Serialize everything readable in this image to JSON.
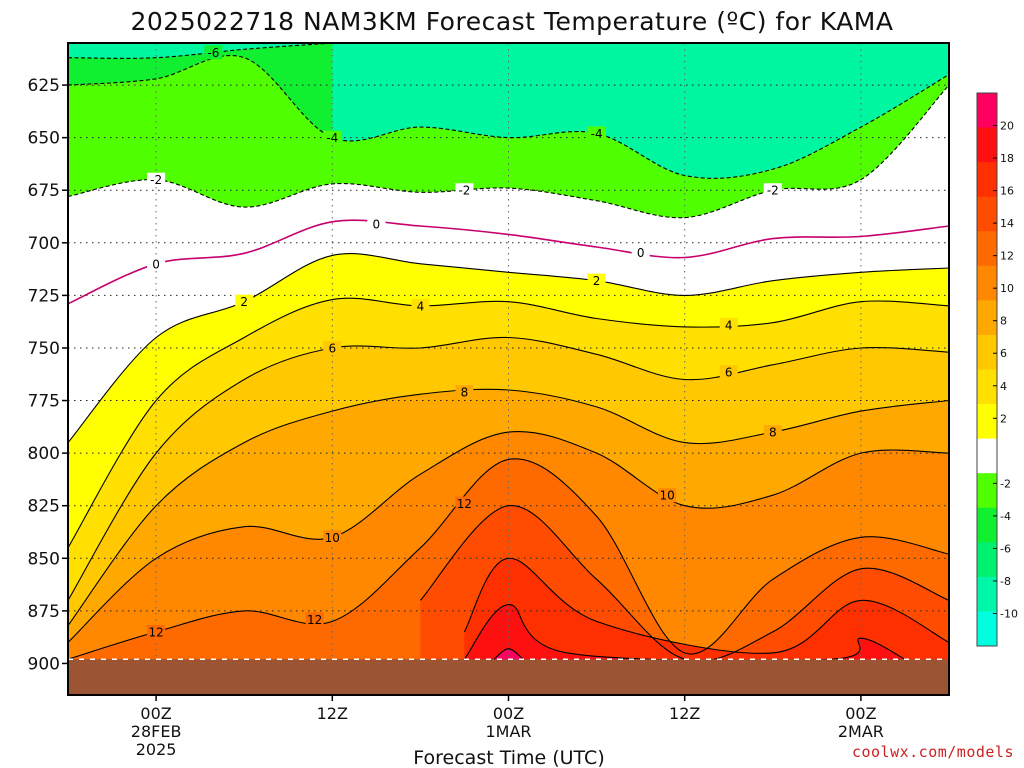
{
  "chart_data": {
    "type": "heatmap",
    "title": "2025022718 NAM3KM Forecast Temperature (ºC) for KAMA",
    "xlabel": "Forecast Time (UTC)",
    "ylabel": "",
    "credit": "coolwx.com/models",
    "y_axis": {
      "quantity": "pressure (hPa)",
      "inverted": true,
      "range": [
        915,
        605
      ],
      "ticks": [
        625,
        650,
        675,
        700,
        725,
        750,
        775,
        800,
        825,
        850,
        875,
        900
      ],
      "tick_labels": [
        "625",
        "650",
        "675",
        "700",
        "725",
        "750",
        "775",
        "800",
        "825",
        "850",
        "875",
        "900"
      ]
    },
    "x_axis": {
      "quantity": "forecast time (UTC)",
      "range": [
        "2025-02-27T18Z",
        "2025-03-02T06Z"
      ],
      "ticks": [
        "2025-02-28T00Z",
        "2025-02-28T12Z",
        "2025-03-01T00Z",
        "2025-03-01T12Z",
        "2025-03-02T00Z"
      ],
      "tick_labels": [
        {
          "line1": "00Z",
          "line2": "28FEB",
          "line3": "2025"
        },
        {
          "line1": "12Z",
          "line2": "",
          "line3": ""
        },
        {
          "line1": "00Z",
          "line2": "1MAR",
          "line3": ""
        },
        {
          "line1": "12Z",
          "line2": "",
          "line3": ""
        },
        {
          "line1": "00Z",
          "line2": "2MAR",
          "line3": ""
        }
      ]
    },
    "grid": true,
    "surface_fill_color": "#9b5434",
    "colorbar": {
      "placement": "right",
      "levels": [
        {
          "min": -12,
          "max": -10,
          "color": "#00ffe0"
        },
        {
          "min": -10,
          "max": -8,
          "color": "#00f6a8"
        },
        {
          "min": -8,
          "max": -6,
          "color": "#00f070"
        },
        {
          "min": -6,
          "max": -4,
          "color": "#10f030"
        },
        {
          "min": -4,
          "max": -2,
          "color": "#50ff00"
        },
        {
          "min": -2,
          "max": 2,
          "color": "#ffffff"
        },
        {
          "min": 2,
          "max": 4,
          "color": "#ffff00"
        },
        {
          "min": 4,
          "max": 6,
          "color": "#ffe000"
        },
        {
          "min": 6,
          "max": 8,
          "color": "#ffc800"
        },
        {
          "min": 8,
          "max": 10,
          "color": "#ffa800"
        },
        {
          "min": 10,
          "max": 12,
          "color": "#ff8800"
        },
        {
          "min": 12,
          "max": 14,
          "color": "#ff6a00"
        },
        {
          "min": 14,
          "max": 16,
          "color": "#ff4c00"
        },
        {
          "min": 16,
          "max": 18,
          "color": "#ff3000"
        },
        {
          "min": 18,
          "max": 20,
          "color": "#ff1010"
        },
        {
          "min": 20,
          "max": 22,
          "color": "#ff0060"
        }
      ],
      "tick_labels": [
        "20",
        "18",
        "16",
        "14",
        "12",
        "10",
        "8",
        "6",
        "4",
        "2",
        "-2",
        "-4",
        "-6",
        "-8",
        "-10"
      ]
    },
    "contour_labels": [
      "-6",
      "-4",
      "-4",
      "-2",
      "-2",
      "-2",
      "0",
      "0",
      "0",
      "2",
      "2",
      "4",
      "4",
      "6",
      "6",
      "8",
      "8",
      "12",
      "10",
      "12",
      "12",
      "10"
    ],
    "series": [
      {
        "level": -6,
        "points": [
          [
            "2025-02-27T18Z",
            612
          ],
          [
            "2025-02-28T00Z",
            612
          ],
          [
            "2025-02-28T06Z",
            608
          ],
          [
            "2025-02-28T12Z",
            605
          ]
        ]
      },
      {
        "level": -4,
        "points": [
          [
            "2025-02-27T18Z",
            625
          ],
          [
            "2025-02-28T00Z",
            622
          ],
          [
            "2025-02-28T06Z",
            612
          ],
          [
            "2025-02-28T12Z",
            650
          ],
          [
            "2025-02-28T18Z",
            645
          ],
          [
            "2025-03-01T00Z",
            650
          ],
          [
            "2025-03-01T06Z",
            648
          ],
          [
            "2025-03-01T12Z",
            668
          ],
          [
            "2025-03-01T18Z",
            665
          ],
          [
            "2025-03-02T00Z",
            645
          ],
          [
            "2025-03-02T06Z",
            620
          ]
        ]
      },
      {
        "level": -2,
        "points": [
          [
            "2025-02-27T18Z",
            678
          ],
          [
            "2025-02-28T00Z",
            670
          ],
          [
            "2025-02-28T06Z",
            683
          ],
          [
            "2025-02-28T12Z",
            672
          ],
          [
            "2025-02-28T18Z",
            676
          ],
          [
            "2025-03-01T00Z",
            674
          ],
          [
            "2025-03-01T06Z",
            680
          ],
          [
            "2025-03-01T12Z",
            688
          ],
          [
            "2025-03-01T18Z",
            675
          ],
          [
            "2025-03-02T00Z",
            670
          ],
          [
            "2025-03-02T06Z",
            625
          ]
        ]
      },
      {
        "level": 0,
        "points": [
          [
            "2025-02-27T18Z",
            729
          ],
          [
            "2025-02-28T00Z",
            710
          ],
          [
            "2025-02-28T06Z",
            705
          ],
          [
            "2025-02-28T12Z",
            690
          ],
          [
            "2025-02-28T18Z",
            692
          ],
          [
            "2025-03-01T00Z",
            696
          ],
          [
            "2025-03-01T06Z",
            702
          ],
          [
            "2025-03-01T12Z",
            707
          ],
          [
            "2025-03-01T18Z",
            698
          ],
          [
            "2025-03-02T00Z",
            697
          ],
          [
            "2025-03-02T06Z",
            692
          ]
        ]
      },
      {
        "level": 2,
        "points": [
          [
            "2025-02-27T18Z",
            795
          ],
          [
            "2025-02-28T00Z",
            745
          ],
          [
            "2025-02-28T06Z",
            728
          ],
          [
            "2025-02-28T12Z",
            706
          ],
          [
            "2025-02-28T18Z",
            710
          ],
          [
            "2025-03-01T00Z",
            714
          ],
          [
            "2025-03-01T06Z",
            718
          ],
          [
            "2025-03-01T12Z",
            725
          ],
          [
            "2025-03-01T18Z",
            718
          ],
          [
            "2025-03-02T00Z",
            714
          ],
          [
            "2025-03-02T06Z",
            712
          ]
        ]
      },
      {
        "level": 4,
        "points": [
          [
            "2025-02-27T18Z",
            845
          ],
          [
            "2025-02-28T00Z",
            775
          ],
          [
            "2025-02-28T06Z",
            745
          ],
          [
            "2025-02-28T12Z",
            727
          ],
          [
            "2025-02-28T18Z",
            730
          ],
          [
            "2025-03-01T00Z",
            728
          ],
          [
            "2025-03-01T06Z",
            736
          ],
          [
            "2025-03-01T12Z",
            740
          ],
          [
            "2025-03-01T18Z",
            738
          ],
          [
            "2025-03-02T00Z",
            728
          ],
          [
            "2025-03-02T06Z",
            730
          ]
        ]
      },
      {
        "level": 6,
        "points": [
          [
            "2025-02-27T18Z",
            870
          ],
          [
            "2025-02-28T00Z",
            800
          ],
          [
            "2025-02-28T06Z",
            765
          ],
          [
            "2025-02-28T12Z",
            750
          ],
          [
            "2025-02-28T18Z",
            750
          ],
          [
            "2025-03-01T00Z",
            745
          ],
          [
            "2025-03-01T06Z",
            753
          ],
          [
            "2025-03-01T12Z",
            765
          ],
          [
            "2025-03-01T18Z",
            758
          ],
          [
            "2025-03-02T00Z",
            750
          ],
          [
            "2025-03-02T06Z",
            752
          ]
        ]
      },
      {
        "level": 8,
        "points": [
          [
            "2025-02-27T18Z",
            882
          ],
          [
            "2025-02-28T00Z",
            825
          ],
          [
            "2025-02-28T06Z",
            795
          ],
          [
            "2025-02-28T12Z",
            780
          ],
          [
            "2025-02-28T18Z",
            772
          ],
          [
            "2025-03-01T00Z",
            770
          ],
          [
            "2025-03-01T06Z",
            778
          ],
          [
            "2025-03-01T12Z",
            795
          ],
          [
            "2025-03-01T18Z",
            790
          ],
          [
            "2025-03-02T00Z",
            780
          ],
          [
            "2025-03-02T06Z",
            775
          ]
        ]
      },
      {
        "level": 10,
        "points": [
          [
            "2025-02-27T18Z",
            890
          ],
          [
            "2025-02-28T00Z",
            850
          ],
          [
            "2025-02-28T06Z",
            835
          ],
          [
            "2025-02-28T12Z",
            840
          ],
          [
            "2025-02-28T18Z",
            810
          ],
          [
            "2025-03-01T00Z",
            790
          ],
          [
            "2025-03-01T06Z",
            800
          ],
          [
            "2025-03-01T12Z",
            825
          ],
          [
            "2025-03-01T18Z",
            820
          ],
          [
            "2025-03-02T00Z",
            800
          ],
          [
            "2025-03-02T06Z",
            800
          ]
        ]
      },
      {
        "level": 12,
        "points": [
          [
            "2025-02-27T18Z",
            898
          ],
          [
            "2025-02-28T00Z",
            885
          ],
          [
            "2025-02-28T06Z",
            875
          ],
          [
            "2025-02-28T12Z",
            880
          ],
          [
            "2025-02-28T18Z",
            845
          ],
          [
            "2025-03-01T00Z",
            803
          ],
          [
            "2025-03-01T06Z",
            830
          ],
          [
            "2025-03-01T12Z",
            895
          ],
          [
            "2025-03-01T18Z",
            860
          ],
          [
            "2025-03-02T00Z",
            840
          ],
          [
            "2025-03-02T06Z",
            848
          ]
        ]
      },
      {
        "level": 14,
        "points": [
          [
            "2025-02-28T18Z",
            870
          ],
          [
            "2025-03-01T00Z",
            825
          ],
          [
            "2025-03-01T06Z",
            860
          ],
          [
            "2025-03-01T12Z",
            898
          ],
          [
            "2025-03-01T18Z",
            885
          ],
          [
            "2025-03-02T00Z",
            855
          ],
          [
            "2025-03-02T06Z",
            870
          ]
        ]
      },
      {
        "level": 16,
        "points": [
          [
            "2025-02-28T21Z",
            885
          ],
          [
            "2025-03-01T00Z",
            850
          ],
          [
            "2025-03-01T06Z",
            880
          ],
          [
            "2025-03-01T18Z",
            895
          ],
          [
            "2025-03-02T00Z",
            870
          ],
          [
            "2025-03-02T06Z",
            890
          ]
        ]
      },
      {
        "level": 18,
        "points": [
          [
            "2025-02-28T21Z",
            898
          ],
          [
            "2025-03-01T00Z",
            872
          ],
          [
            "2025-03-01T04Z",
            895
          ],
          [
            "2025-03-01T22Z",
            898
          ],
          [
            "2025-03-02T00Z",
            888
          ],
          [
            "2025-03-02T03Z",
            898
          ]
        ]
      },
      {
        "level": 20,
        "points": [
          [
            "2025-02-28T23Z",
            898
          ],
          [
            "2025-03-01T00Z",
            893
          ],
          [
            "2025-03-01T01Z",
            898
          ]
        ]
      }
    ]
  }
}
